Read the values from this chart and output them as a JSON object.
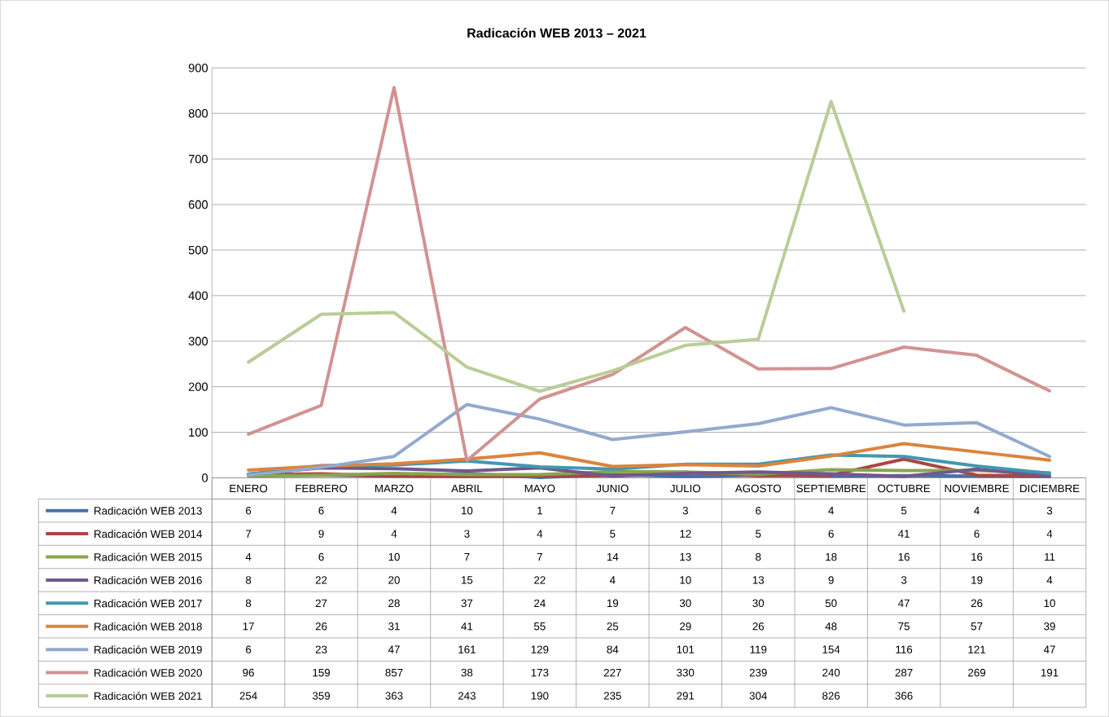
{
  "chart_data": {
    "type": "line",
    "title": "Radicación WEB 2013 – 2021",
    "categories": [
      "ENERO",
      "FEBRERO",
      "MARZO",
      "ABRIL",
      "MAYO",
      "JUNIO",
      "JULIO",
      "AGOSTO",
      "SEPTIEMBRE",
      "OCTUBRE",
      "NOVIEMBRE",
      "DICIEMBRE"
    ],
    "series": [
      {
        "name": "Radicación WEB 2013",
        "color": "#4572a7",
        "values": [
          6,
          6,
          4,
          10,
          1,
          7,
          3,
          6,
          4,
          5,
          4,
          3
        ]
      },
      {
        "name": "Radicación WEB 2014",
        "color": "#aa4643",
        "values": [
          7,
          9,
          4,
          3,
          4,
          5,
          12,
          5,
          6,
          41,
          6,
          4
        ]
      },
      {
        "name": "Radicación WEB 2015",
        "color": "#89a54e",
        "values": [
          4,
          6,
          10,
          7,
          7,
          14,
          13,
          8,
          18,
          16,
          16,
          11
        ]
      },
      {
        "name": "Radicación WEB 2016",
        "color": "#71588f",
        "values": [
          8,
          22,
          20,
          15,
          22,
          4,
          10,
          13,
          9,
          3,
          19,
          4
        ]
      },
      {
        "name": "Radicación WEB 2017",
        "color": "#4198af",
        "values": [
          8,
          27,
          28,
          37,
          24,
          19,
          30,
          30,
          50,
          47,
          26,
          10
        ]
      },
      {
        "name": "Radicación WEB 2018",
        "color": "#db843d",
        "values": [
          17,
          26,
          31,
          41,
          55,
          25,
          29,
          26,
          48,
          75,
          57,
          39
        ]
      },
      {
        "name": "Radicación WEB 2019",
        "color": "#93a9cf",
        "values": [
          6,
          23,
          47,
          161,
          129,
          84,
          101,
          119,
          154,
          116,
          121,
          47
        ]
      },
      {
        "name": "Radicación WEB 2020",
        "color": "#d19392",
        "values": [
          96,
          159,
          857,
          38,
          173,
          227,
          330,
          239,
          240,
          287,
          269,
          191
        ]
      },
      {
        "name": "Radicación WEB 2021",
        "color": "#b9cd96",
        "values": [
          254,
          359,
          363,
          243,
          190,
          235,
          291,
          304,
          826,
          366,
          null,
          null
        ]
      }
    ],
    "ylim": [
      0,
      900
    ],
    "yticks": [
      0,
      100,
      200,
      300,
      400,
      500,
      600,
      700,
      800,
      900
    ],
    "grid": "y",
    "legend": "bottom",
    "data_labels": true,
    "marker": "none",
    "line_style": "solid"
  }
}
